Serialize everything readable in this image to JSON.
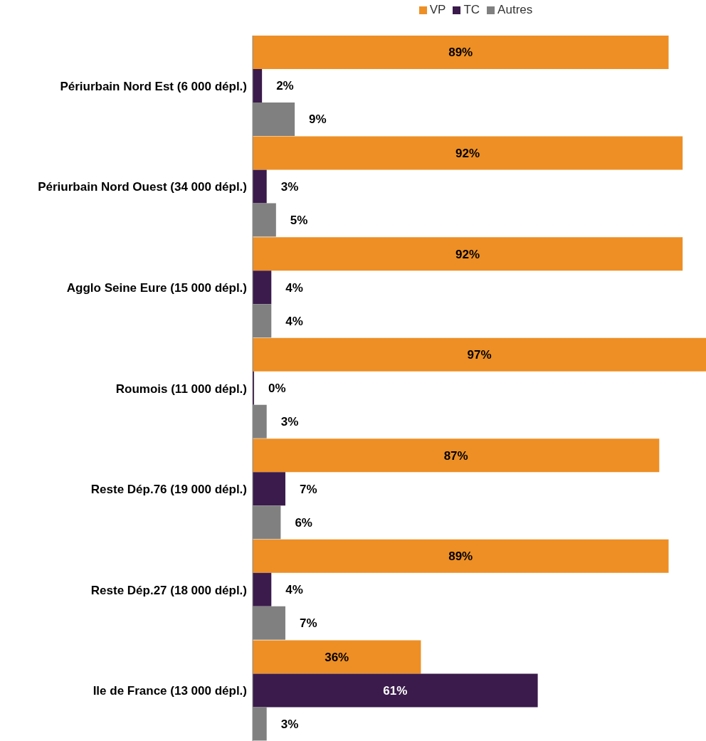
{
  "chart_data": {
    "type": "bar",
    "orientation": "horizontal",
    "categories": [
      "Périurbain Nord Est (6 000 dépl.)",
      "Périurbain Nord Ouest (34 000 dépl.)",
      "Agglo Seine Eure (15 000 dépl.)",
      "Roumois (11 000 dépl.)",
      "Reste Dép.76 (19 000 dépl.)",
      "Reste Dép.27 (18 000 dépl.)",
      "Ile de France (13 000 dépl.)"
    ],
    "series": [
      {
        "name": "VP",
        "color": "#ed8f25",
        "values": [
          89,
          92,
          92,
          97,
          87,
          89,
          36
        ],
        "value_labels": [
          "89%",
          "92%",
          "92%",
          "97%",
          "87%",
          "89%",
          "36%"
        ]
      },
      {
        "name": "TC",
        "color": "#3a1b4b",
        "values": [
          2,
          3,
          4,
          0,
          7,
          4,
          61
        ],
        "value_labels": [
          "2%",
          "3%",
          "4%",
          "0%",
          "7%",
          "4%",
          "61%"
        ]
      },
      {
        "name": "Autres",
        "color": "#808080",
        "values": [
          9,
          5,
          4,
          3,
          6,
          7,
          3
        ],
        "value_labels": [
          "9%",
          "5%",
          "4%",
          "3%",
          "6%",
          "7%",
          "3%"
        ]
      }
    ],
    "legend": "top",
    "grid": false
  }
}
